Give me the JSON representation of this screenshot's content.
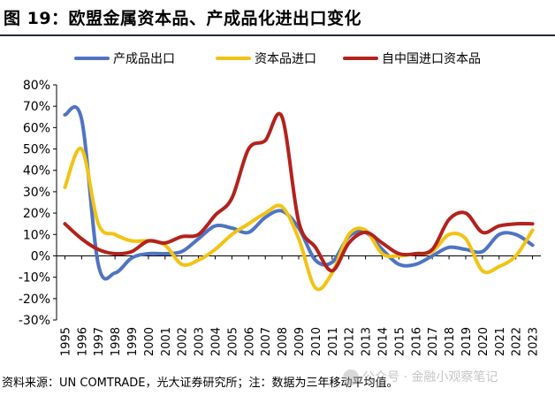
{
  "title": "图 19：欧盟金属资本品、产成品化进出口变化",
  "footer": "资料来源：UN COMTRADE，光大证券研究所；注：数据为三年移动平均值。",
  "watermark": "公众号 · 金融小观察笔记",
  "chart_data": {
    "type": "line",
    "title": "",
    "xlabel": "",
    "ylabel": "",
    "ylim": [
      -0.3,
      0.8
    ],
    "yticks": [
      "-30%",
      "-20%",
      "-10%",
      "0%",
      "10%",
      "20%",
      "30%",
      "40%",
      "50%",
      "60%",
      "70%",
      "80%"
    ],
    "categories": [
      "1995",
      "1996",
      "1997",
      "1998",
      "1999",
      "2000",
      "2001",
      "2002",
      "2003",
      "2004",
      "2005",
      "2006",
      "2007",
      "2008",
      "2009",
      "2010",
      "2011",
      "2012",
      "2013",
      "2014",
      "2015",
      "2016",
      "2017",
      "2018",
      "2019",
      "2020",
      "2021",
      "2022",
      "2023"
    ],
    "legend_position": "top",
    "series": [
      {
        "name": "产成品出口",
        "color": "#4f74c4",
        "values": [
          0.66,
          0.64,
          -0.04,
          -0.08,
          -0.01,
          0.01,
          0.01,
          0.02,
          0.08,
          0.14,
          0.13,
          0.11,
          0.18,
          0.21,
          0.13,
          -0.02,
          -0.03,
          0.09,
          0.11,
          0.03,
          -0.04,
          -0.04,
          0.0,
          0.04,
          0.03,
          0.02,
          0.1,
          0.1,
          0.05
        ]
      },
      {
        "name": "资本品进口",
        "color": "#f2c314",
        "values": [
          0.32,
          0.5,
          0.15,
          0.1,
          0.07,
          0.07,
          0.05,
          -0.04,
          -0.02,
          0.03,
          0.1,
          0.15,
          0.2,
          0.23,
          0.08,
          -0.15,
          -0.08,
          0.1,
          0.12,
          0.01,
          0.0,
          0.01,
          0.02,
          0.1,
          0.08,
          -0.07,
          -0.05,
          0.0,
          0.12
        ]
      },
      {
        "name": "自中国进口资本品",
        "color": "#b3221c",
        "values": [
          0.15,
          0.08,
          0.03,
          0.01,
          0.02,
          0.07,
          0.06,
          0.09,
          0.1,
          0.19,
          0.27,
          0.5,
          0.54,
          0.65,
          0.16,
          0.04,
          -0.07,
          0.06,
          0.11,
          0.06,
          0.01,
          0.01,
          0.03,
          0.17,
          0.2,
          0.11,
          0.14,
          0.15,
          0.15
        ]
      }
    ]
  }
}
